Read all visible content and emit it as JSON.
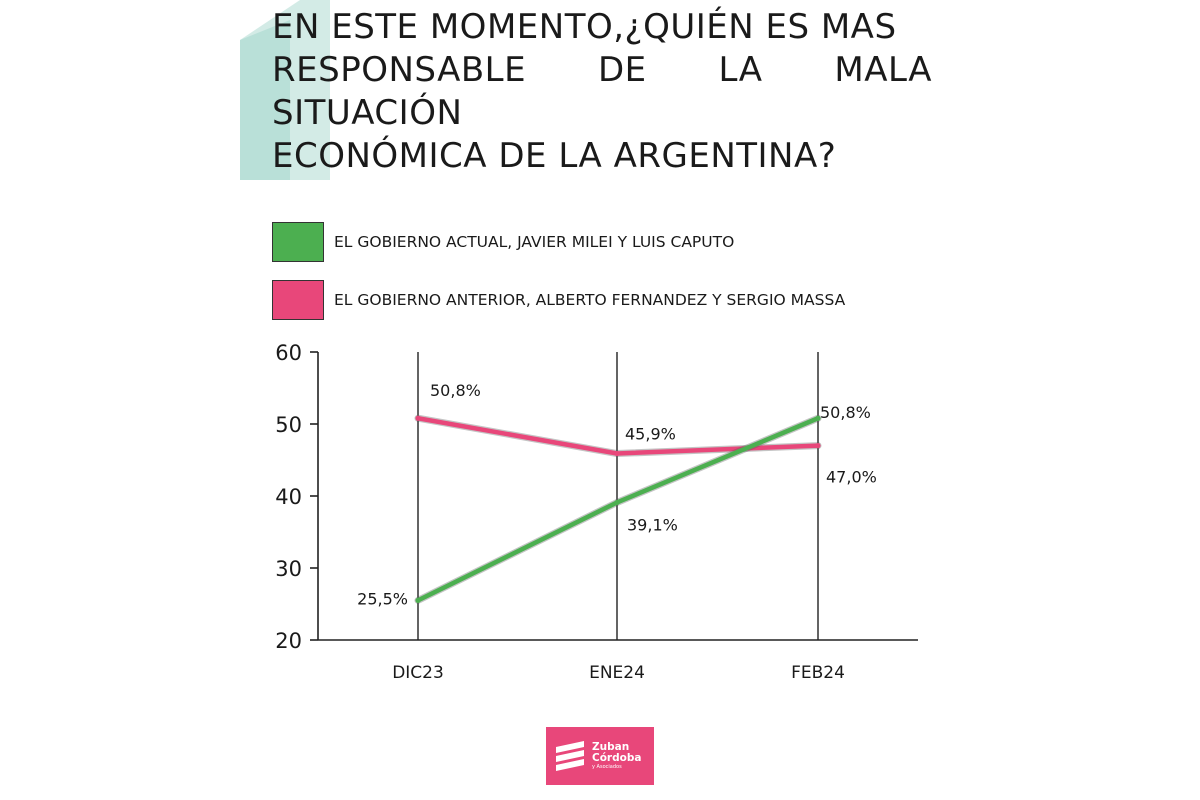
{
  "title_lines": [
    "EN ESTE MOMENTO,¿QUIÉN ES MAS",
    "RESPONSABLE DE LA MALA SITUACIÓN",
    "ECONÓMICA DE LA ARGENTINA?"
  ],
  "colors": {
    "green": "#4caf50",
    "pink": "#e8477a",
    "deco": "#b9ded8"
  },
  "chart_data": {
    "type": "line",
    "title": "EN ESTE MOMENTO,¿QUIÉN ES MAS RESPONSABLE DE LA MALA SITUACIÓN ECONÓMICA DE LA ARGENTINA?",
    "categories": [
      "DIC23",
      "ENE24",
      "FEB24"
    ],
    "ylim": [
      20,
      60
    ],
    "yticks": [
      20,
      30,
      40,
      50,
      60
    ],
    "series": [
      {
        "name": "EL GOBIERNO ACTUAL, JAVIER MILEI Y LUIS CAPUTO",
        "color": "#4caf50",
        "values": [
          25.5,
          39.1,
          50.8
        ],
        "labels": [
          "25,5%",
          "39,1%",
          "50,8%"
        ]
      },
      {
        "name": "EL GOBIERNO ANTERIOR, ALBERTO FERNANDEZ Y SERGIO MASSA",
        "color": "#e8477a",
        "values": [
          50.8,
          45.9,
          47.0
        ],
        "labels": [
          "50,8%",
          "45,9%",
          "47,0%"
        ]
      }
    ]
  },
  "logo": {
    "line1": "Zuban",
    "line2": "Córdoba",
    "line3": "y Asociados"
  }
}
